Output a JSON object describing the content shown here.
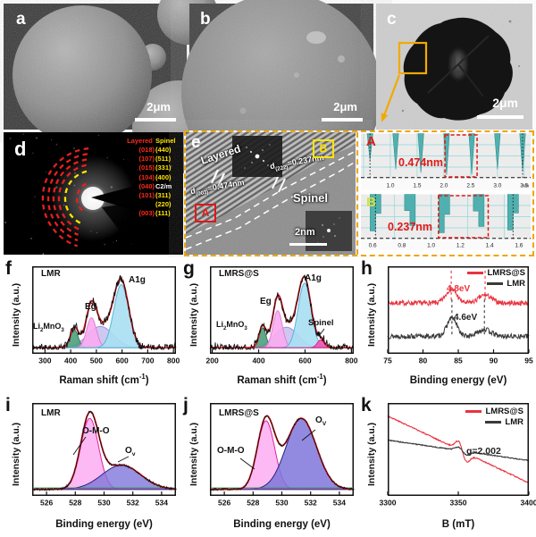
{
  "panels": {
    "a": {
      "letter": "a",
      "scale_bar": "2μm"
    },
    "b": {
      "letter": "b",
      "scale_bar": "2μm"
    },
    "c": {
      "letter": "c",
      "scale_bar": "2μm"
    },
    "d": {
      "letter": "d",
      "columns": {
        "layered": "Layered",
        "spinel": "Spinel"
      },
      "rows": [
        {
          "layered": "(018)",
          "spinel": "(440)"
        },
        {
          "layered": "(107)",
          "spinel": "(511)"
        },
        {
          "layered": "(015)",
          "spinel": "(331)"
        },
        {
          "layered": "(104)",
          "spinel": "(400)"
        },
        {
          "layered": "(040)",
          "spinel": "C2/m"
        },
        {
          "layered": "(101)",
          "spinel": "(311)"
        },
        {
          "layered": "",
          "spinel": "(220)"
        },
        {
          "layered": "(003)",
          "spinel": "(111)"
        }
      ]
    },
    "e": {
      "letter": "e",
      "layered": "Layered",
      "spinel": "Spinel",
      "marker_a": "A",
      "marker_b": "B",
      "d_layered": {
        "base": "d",
        "sub": "(003)",
        "value": "=0.474nm"
      },
      "d_spinel": {
        "base": "d",
        "sub": "(222)",
        "value": "=0.237nm"
      },
      "scale_bar": "2nm"
    },
    "profile_a": {
      "letter": "A",
      "annotation": "0.474nm",
      "unit": "nm"
    },
    "profile_b": {
      "letter": "B",
      "annotation": "0.237nm"
    },
    "f": {
      "letter": "f",
      "sample": "LMR"
    },
    "g": {
      "letter": "g",
      "sample": "LMRS@S",
      "spinel_label": "Spinel"
    },
    "h": {
      "letter": "h",
      "legend": [
        "LMRS@S",
        "LMR"
      ],
      "delta_red": "4.8eV",
      "delta_black": "4.6eV"
    },
    "i": {
      "letter": "i",
      "sample": "LMR",
      "peak1": "O-M-O",
      "peak2": {
        "base": "O",
        "sub": "v"
      }
    },
    "j": {
      "letter": "j",
      "sample": "LMRS@S",
      "peak1": "O-M-O",
      "peak2": {
        "base": "O",
        "sub": "V"
      }
    },
    "k": {
      "letter": "k",
      "legend": [
        "LMRS@S",
        "LMR"
      ],
      "g_label": "g=2.002"
    }
  },
  "labels": {
    "li2mno3": {
      "p1": "Li",
      "s1": "2",
      "p2": "MnO",
      "s2": "3"
    },
    "eg": "Eg",
    "a1g": "A1g"
  },
  "axes": {
    "intensity": "Intensity (a.u.)",
    "raman": {
      "pre": "Raman shift (cm",
      "sup": "-1",
      "post": ")"
    },
    "binding": "Binding energy (eV)",
    "b_mt": "B (mT)"
  },
  "colors": {
    "accent_orange": "#f0a500",
    "label_red": "#e01818",
    "label_yellow": "#ffe400",
    "curve_red": "#e8343f",
    "curve_black": "#3a3a3a",
    "profile_teal": "#4fb0af"
  },
  "chart_data": [
    {
      "panel": "A",
      "type": "line_profile",
      "annotation": "0.474nm",
      "spacing_nm": 0.474,
      "x_unit": "nm",
      "x_range": [
        0.45,
        3.62
      ],
      "x_ticks": [
        1.0,
        1.5,
        2.0,
        2.5,
        3.0,
        3.5
      ],
      "grid_step": 0.5,
      "peaks_x": [
        0.62,
        1.1,
        1.57,
        2.05,
        2.52,
        3.0,
        3.47
      ],
      "peak_depths": [
        0.6,
        0.8,
        0.88,
        0.93,
        0.92,
        0.8,
        0.85
      ],
      "highlight_box_x": [
        2.02,
        2.62
      ],
      "dotted_x": [
        0.62,
        3.47
      ],
      "spike_style": "needle"
    },
    {
      "panel": "B",
      "type": "line_profile",
      "annotation": "0.237nm",
      "spacing_nm": 0.237,
      "x_range": [
        0.52,
        1.68
      ],
      "x_ticks": [
        0.6,
        0.8,
        1.0,
        1.2,
        1.4,
        1.6
      ],
      "grid_step": 0.25,
      "peaks_x": [
        0.62,
        0.855,
        1.09,
        1.325,
        1.56
      ],
      "peak_depths": [
        0.82,
        0.7,
        0.86,
        0.72,
        0.8
      ],
      "highlight_box_x": [
        1.05,
        1.39
      ],
      "dotted_x": [
        0.62,
        1.56
      ],
      "spike_style": "block"
    },
    {
      "panel": "f",
      "type": "area_spectrum",
      "sample": "LMR",
      "xlabel": "Raman shift (cm-1)",
      "ylabel": "Intensity (a.u.)",
      "x_range": [
        250,
        810
      ],
      "x_ticks": [
        300,
        400,
        500,
        600,
        700,
        800
      ],
      "noise": 0.05,
      "seed": 11,
      "series": [
        {
          "name": "background",
          "center": 516,
          "sigma": 50,
          "amp": 0.27,
          "fill": "#b9b0ea",
          "stroke": "#9c90e2",
          "opacity": 0.7
        },
        {
          "name": "Li2MnO3",
          "center": 414,
          "sigma": 15,
          "amp": 0.23,
          "fill": "#4f9f7d",
          "stroke": "#2f7f5e",
          "opacity": 0.9
        },
        {
          "name": "Eg",
          "center": 481,
          "sigma": 19,
          "amp": 0.38,
          "fill": "#f9abef",
          "stroke": "#e07fd8",
          "opacity": 0.9
        },
        {
          "name": "A1g",
          "center": 597,
          "sigma": 29,
          "amp": 0.8,
          "fill": "#a9dff3",
          "stroke": "#57b6d8",
          "opacity": 0.9
        }
      ]
    },
    {
      "panel": "g",
      "type": "area_spectrum",
      "sample": "LMRS@S",
      "xlabel": "Raman shift (cm-1)",
      "ylabel": "Intensity (a.u.)",
      "x_range": [
        190,
        810
      ],
      "x_ticks": [
        200,
        400,
        600,
        800
      ],
      "noise": 0.05,
      "seed": 21,
      "leaders": [
        [
          128,
          70,
          122,
          78
        ]
      ],
      "series": [
        {
          "name": "background",
          "center": 520,
          "sigma": 50,
          "amp": 0.26,
          "fill": "#b9b0ea",
          "stroke": "#9c90e2",
          "opacity": 0.7
        },
        {
          "name": "Li2MnO3",
          "center": 417,
          "sigma": 15,
          "amp": 0.25,
          "fill": "#4f9f7d",
          "stroke": "#2f7f5e",
          "opacity": 0.9
        },
        {
          "name": "Eg",
          "center": 482,
          "sigma": 20,
          "amp": 0.47,
          "fill": "#f9abef",
          "stroke": "#e07fd8",
          "opacity": 0.9
        },
        {
          "name": "A1g",
          "center": 598,
          "sigma": 28,
          "amp": 0.82,
          "fill": "#a9dff3",
          "stroke": "#57b6d8",
          "opacity": 0.9
        },
        {
          "name": "Spinel",
          "center": 668,
          "sigma": 15,
          "amp": 0.1,
          "fill": "#f05ab4",
          "stroke": "#d42a92",
          "opacity": 0.95
        }
      ]
    },
    {
      "panel": "h",
      "type": "line_spectrum",
      "xlabel": "Binding energy (eV)",
      "ylabel": "Intensity (a.u.)",
      "x_range": [
        75,
        95
      ],
      "x_ticks": [
        75,
        80,
        85,
        90,
        95
      ],
      "legend": [
        "LMRS@S",
        "LMR"
      ],
      "annotations": [
        {
          "text": "4.8eV"
        },
        {
          "text": "4.6eV"
        }
      ],
      "series": [
        {
          "name": "LMRS@S",
          "color": "#e8343f",
          "baseline": 0.58,
          "noise": 0.028,
          "seed": 7,
          "peaks": [
            {
              "center": 84.0,
              "amp": 0.16,
              "sigma": 0.75
            },
            {
              "center": 88.8,
              "amp": 0.09,
              "sigma": 0.9
            }
          ],
          "dash_x": [
            84.0,
            88.8
          ],
          "dash_y": [
            0.6,
            0.95
          ]
        },
        {
          "name": "LMR",
          "color": "#3a3a3a",
          "baseline": 0.2,
          "noise": 0.028,
          "seed": 13,
          "peaks": [
            {
              "center": 84.1,
              "amp": 0.21,
              "sigma": 0.7
            },
            {
              "center": 88.7,
              "amp": 0.08,
              "sigma": 0.9
            }
          ],
          "dash_x": [
            84.1,
            88.7
          ],
          "dash_y": [
            0.22,
            0.62
          ]
        }
      ]
    },
    {
      "panel": "i",
      "type": "area_spectrum",
      "sample": "LMR",
      "xlabel": "Binding energy (eV)",
      "ylabel": "Intensity (a.u.)",
      "x_range": [
        525,
        535
      ],
      "x_ticks": [
        526,
        528,
        530,
        532,
        534
      ],
      "noise": 0.012,
      "seed": 5,
      "baseline_lines": [
        "#1b9e44",
        "#b043c8"
      ],
      "leaders": [
        [
          60,
          38,
          46,
          58
        ],
        [
          108,
          60,
          96,
          66
        ]
      ],
      "series": [
        {
          "name": "O-M-O",
          "center": 529.0,
          "sigma": 0.62,
          "amp": 0.85,
          "fill": "#fbadf1",
          "stroke": "#e2239c",
          "opacity": 0.85
        },
        {
          "name": "Ov",
          "center": 531.2,
          "sigma": 1.35,
          "amp": 0.29,
          "fill": "#7f76da",
          "stroke": "#23237f",
          "opacity": 0.8
        }
      ]
    },
    {
      "panel": "j",
      "type": "area_spectrum",
      "sample": "LMRS@S",
      "xlabel": "Binding energy (eV)",
      "ylabel": "Intensity (a.u.)",
      "x_range": [
        525,
        535
      ],
      "x_ticks": [
        526,
        528,
        530,
        532,
        534
      ],
      "noise": 0.012,
      "seed": 6,
      "baseline_lines": [
        "#1b9e44",
        "#b043c8"
      ],
      "leaders": [
        [
          34,
          62,
          50,
          74
        ],
        [
          118,
          30,
          103,
          42
        ]
      ],
      "series": [
        {
          "name": "O-M-O",
          "center": 528.9,
          "sigma": 0.6,
          "amp": 0.82,
          "fill": "#fbadf1",
          "stroke": "#e2239c",
          "opacity": 0.85
        },
        {
          "name": "Ov",
          "center": 531.35,
          "sigma": 1.05,
          "amp": 0.85,
          "fill": "#7f76da",
          "stroke": "#23237f",
          "opacity": 0.85
        }
      ]
    },
    {
      "panel": "k",
      "type": "epr",
      "xlabel": "B (mT)",
      "ylabel": "Intensity (a.u.)",
      "x_range": [
        3300,
        3400
      ],
      "x_ticks": [
        3300,
        3350,
        3400
      ],
      "legend": [
        "LMRS@S",
        "LMR"
      ],
      "annotation": "g=2.002",
      "g_value": 2.002,
      "series": [
        {
          "name": "LMRS@S",
          "color": "#e8343f",
          "start": 0.86,
          "end": 0.14,
          "noise": 0.006,
          "seed": 3,
          "wiggle": {
            "center": 3353,
            "width": 3.0,
            "amp": 0.09
          }
        },
        {
          "name": "LMR",
          "color": "#3a3a3a",
          "start": 0.6,
          "end": 0.38,
          "noise": 0.005,
          "seed": 9,
          "wiggle": {
            "center": 3353,
            "width": 3.0,
            "amp": 0.035
          }
        }
      ]
    }
  ]
}
